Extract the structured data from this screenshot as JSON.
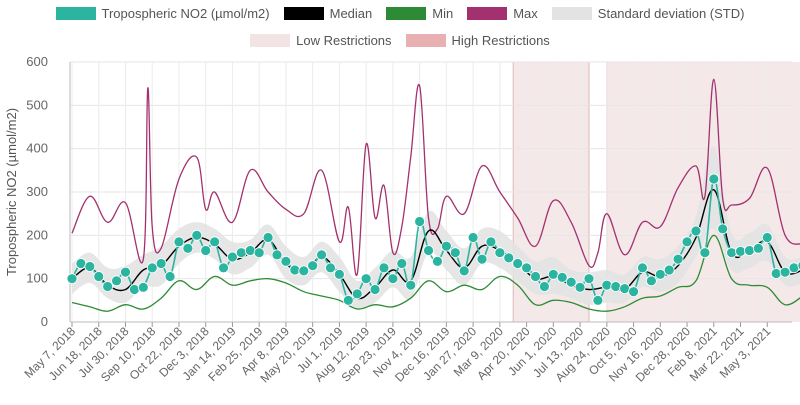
{
  "chart_data": {
    "type": "line",
    "ylabel": "Tropospheric NO2 (µmol/m2)",
    "xlabel": "",
    "ylim": [
      0,
      600
    ],
    "yticks": [
      0,
      100,
      200,
      300,
      400,
      500,
      600
    ],
    "x_tick_labels": [
      "May 7, 2018",
      "Jun 18, 2018",
      "Jul 30, 2018",
      "Sep 10, 2018",
      "Oct 22, 2018",
      "Dec 3, 2018",
      "Jan 14, 2019",
      "Feb 25, 2019",
      "Apr 8, 2019",
      "May 20, 2019",
      "Jul 1, 2019",
      "Aug 12, 2019",
      "Sep 23, 2019",
      "Nov 4, 2019",
      "Dec 16, 2019",
      "Jan 27, 2020",
      "Mar 9, 2020",
      "Apr 20, 2020",
      "Jun 1, 2020",
      "Jul 13, 2020",
      "Aug 24, 2020",
      "Oct 5, 2020",
      "Nov 16, 2020",
      "Dec 28, 2020",
      "Feb 8, 2021",
      "Mar 22, 2021",
      "May 3, 2021"
    ],
    "x_unit": "weeks since first label",
    "grid": true,
    "legend_position": "top",
    "legend": [
      {
        "name": "Tropospheric NO2 (µmol/m2)",
        "color": "#2bb5a0"
      },
      {
        "name": "Median",
        "color": "#000000"
      },
      {
        "name": "Min",
        "color": "#2e8b35"
      },
      {
        "name": "Max",
        "color": "#a3316f"
      },
      {
        "name": "Standard deviation (STD)",
        "color": "#e3e3e3"
      },
      {
        "name": "Low Restrictions",
        "color": "#f2e4e4"
      },
      {
        "name": "High Restrictions",
        "color": "#e8b0b0"
      }
    ],
    "restriction_bands": [
      {
        "type": "Low Restrictions",
        "from": 99,
        "to": 116
      },
      {
        "type": "Low Restrictions",
        "from": 120,
        "to": 169
      }
    ],
    "series": [
      {
        "name": "Tropospheric NO2 (µmol/m2)",
        "x": [
          0,
          2,
          4,
          6,
          8,
          10,
          12,
          14,
          16,
          18,
          20,
          22,
          24,
          26,
          28,
          30,
          32,
          34,
          36,
          38,
          40,
          42,
          44,
          46,
          48,
          50,
          52,
          54,
          56,
          58,
          60,
          62,
          64,
          66,
          68,
          70,
          72,
          74,
          76,
          78,
          80,
          82,
          84,
          86,
          88,
          90,
          92,
          94,
          96,
          98,
          100,
          102,
          104,
          106,
          108,
          110,
          112,
          114,
          116,
          118,
          120,
          122,
          124,
          126,
          128,
          130,
          132,
          134,
          136,
          138,
          140,
          142,
          144,
          146,
          148,
          150,
          152,
          154,
          156,
          158,
          160,
          162,
          164,
          166
        ],
        "values": [
          100,
          135,
          128,
          105,
          82,
          95,
          115,
          75,
          80,
          125,
          135,
          105,
          185,
          170,
          200,
          165,
          185,
          125,
          150,
          160,
          165,
          160,
          195,
          155,
          140,
          120,
          118,
          130,
          155,
          125,
          110,
          50,
          65,
          100,
          75,
          125,
          100,
          135,
          85,
          232,
          165,
          140,
          175,
          160,
          118,
          195,
          145,
          185,
          160,
          148,
          135,
          125,
          105,
          82,
          110,
          103,
          92,
          80,
          100,
          50,
          85,
          82,
          77,
          70,
          125,
          95,
          110,
          120,
          145,
          185,
          210,
          160,
          330,
          215,
          160,
          163,
          165,
          170,
          195,
          112,
          115,
          125,
          130,
          125
        ]
      },
      {
        "name": "Median",
        "x": [
          0,
          4,
          8,
          12,
          16,
          20,
          24,
          28,
          32,
          36,
          40,
          44,
          48,
          52,
          56,
          60,
          64,
          68,
          72,
          76,
          80,
          84,
          88,
          92,
          96,
          100,
          104,
          108,
          112,
          116,
          120,
          124,
          128,
          132,
          136,
          140,
          144,
          148,
          152,
          156,
          160,
          164
        ],
        "values": [
          100,
          125,
          85,
          75,
          120,
          130,
          175,
          195,
          180,
          145,
          160,
          190,
          135,
          115,
          150,
          110,
          55,
          80,
          120,
          95,
          210,
          165,
          125,
          175,
          165,
          135,
          100,
          105,
          85,
          75,
          80,
          75,
          115,
          105,
          130,
          195,
          305,
          160,
          165,
          185,
          115,
          120
        ]
      },
      {
        "name": "Min",
        "x": [
          0,
          4,
          8,
          12,
          16,
          20,
          24,
          28,
          32,
          36,
          40,
          44,
          48,
          52,
          56,
          60,
          64,
          68,
          72,
          76,
          80,
          84,
          88,
          92,
          96,
          100,
          104,
          108,
          112,
          116,
          120,
          124,
          128,
          132,
          136,
          140,
          144,
          148,
          152,
          156,
          160,
          164
        ],
        "values": [
          45,
          35,
          25,
          40,
          30,
          55,
          95,
          75,
          105,
          85,
          95,
          100,
          90,
          70,
          60,
          50,
          30,
          40,
          35,
          55,
          95,
          70,
          85,
          75,
          105,
          85,
          40,
          50,
          45,
          30,
          25,
          35,
          55,
          60,
          80,
          95,
          200,
          100,
          85,
          80,
          40,
          60
        ]
      },
      {
        "name": "Max",
        "x": [
          0,
          4,
          8,
          12,
          16,
          17,
          18,
          20,
          24,
          28,
          30,
          32,
          36,
          40,
          44,
          48,
          52,
          56,
          60,
          62,
          64,
          66,
          68,
          70,
          72,
          74,
          76,
          78,
          80,
          82,
          84,
          88,
          92,
          96,
          100,
          104,
          108,
          112,
          116,
          118,
          120,
          124,
          128,
          132,
          136,
          140,
          142,
          144,
          146,
          148,
          152,
          156,
          160,
          164
        ],
        "values": [
          205,
          290,
          230,
          275,
          145,
          540,
          220,
          170,
          330,
          380,
          260,
          300,
          230,
          350,
          300,
          260,
          250,
          350,
          185,
          265,
          110,
          410,
          240,
          315,
          160,
          220,
          380,
          545,
          240,
          215,
          290,
          250,
          360,
          300,
          240,
          175,
          280,
          230,
          130,
          160,
          250,
          155,
          230,
          220,
          310,
          360,
          290,
          560,
          285,
          270,
          285,
          355,
          200,
          180
        ]
      },
      {
        "name": "Standard deviation (STD)",
        "x": [
          0,
          4,
          8,
          12,
          16,
          20,
          24,
          28,
          32,
          36,
          40,
          44,
          48,
          52,
          56,
          60,
          64,
          68,
          72,
          76,
          80,
          84,
          88,
          92,
          96,
          100,
          104,
          108,
          112,
          116,
          120,
          124,
          128,
          132,
          136,
          140,
          144,
          148,
          152,
          156,
          160,
          164
        ],
        "upper": [
          135,
          160,
          125,
          130,
          155,
          175,
          215,
          230,
          215,
          185,
          190,
          225,
          175,
          150,
          185,
          150,
          95,
          125,
          165,
          150,
          255,
          210,
          170,
          215,
          210,
          175,
          140,
          150,
          120,
          115,
          120,
          110,
          150,
          145,
          175,
          245,
          405,
          205,
          205,
          225,
          150,
          150
        ],
        "lower": [
          65,
          90,
          55,
          45,
          80,
          85,
          135,
          160,
          145,
          110,
          125,
          155,
          100,
          85,
          115,
          70,
          30,
          45,
          80,
          55,
          160,
          120,
          85,
          135,
          125,
          95,
          65,
          65,
          55,
          40,
          45,
          45,
          80,
          70,
          90,
          150,
          215,
          120,
          125,
          140,
          85,
          90
        ]
      }
    ]
  }
}
